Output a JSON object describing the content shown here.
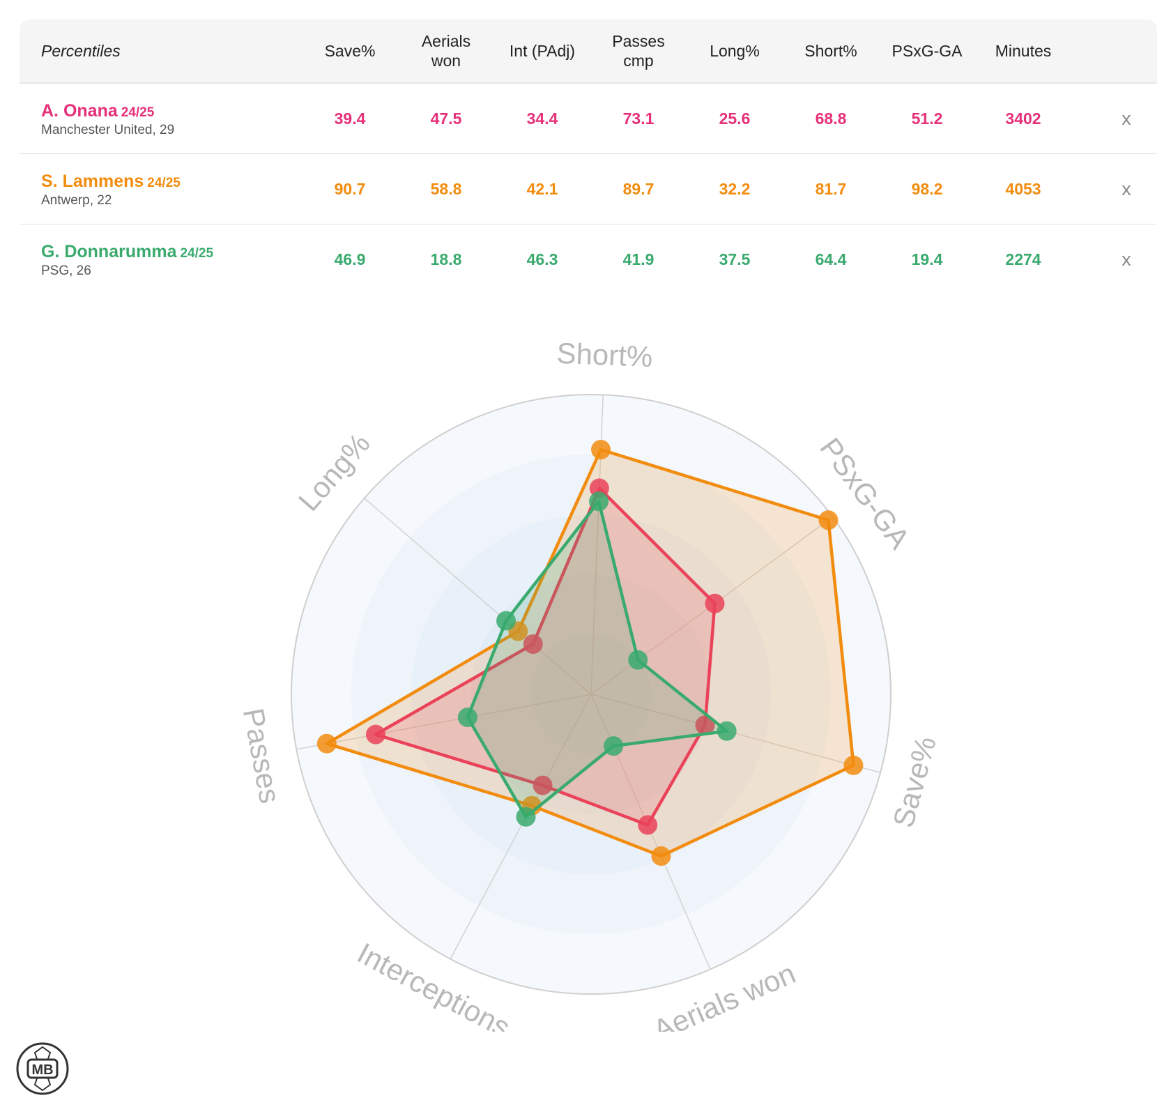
{
  "table": {
    "header_label": "Percentiles",
    "columns": [
      "Save%",
      "Aerials\nwon",
      "Int (PAdj)",
      "Passes\ncmp",
      "Long%",
      "Short%",
      "PSxG-GA",
      "Minutes"
    ],
    "remove_label": "x",
    "players": [
      {
        "name": "A. Onana",
        "season": "24/25",
        "subtitle": "Manchester United, 29",
        "color": "#e6307a",
        "values": [
          "39.4",
          "47.5",
          "34.4",
          "73.1",
          "25.6",
          "68.8",
          "51.2",
          "3402"
        ]
      },
      {
        "name": "S. Lammens",
        "season": "24/25",
        "subtitle": "Antwerp, 22",
        "color": "#f28c0f",
        "values": [
          "90.7",
          "58.8",
          "42.1",
          "89.7",
          "32.2",
          "81.7",
          "98.2",
          "4053"
        ]
      },
      {
        "name": "G. Donnarumma",
        "season": "24/25",
        "subtitle": "PSG, 26",
        "color": "#3aaa6e",
        "values": [
          "46.9",
          "18.8",
          "46.3",
          "41.9",
          "37.5",
          "64.4",
          "19.4",
          "2274"
        ]
      }
    ]
  },
  "chart_data": {
    "type": "radar",
    "axes": [
      "Short%",
      "PSxG-GA",
      "Save%",
      "Aerials won",
      "Interceptions",
      "Passes",
      "Long%"
    ],
    "range": [
      0,
      100
    ],
    "series": [
      {
        "name": "A. Onana",
        "color": "#e8336a",
        "values": [
          68.8,
          51.2,
          39.4,
          47.5,
          34.4,
          73.1,
          25.6
        ]
      },
      {
        "name": "S. Lammens",
        "color": "#f28c0f",
        "values": [
          81.7,
          98.2,
          90.7,
          58.8,
          42.1,
          89.7,
          32.2
        ]
      },
      {
        "name": "G. Donnarumma",
        "color": "#3aaa6e",
        "values": [
          64.4,
          19.4,
          46.9,
          18.8,
          46.3,
          41.9,
          37.5
        ]
      }
    ]
  },
  "logo_text": "MB"
}
